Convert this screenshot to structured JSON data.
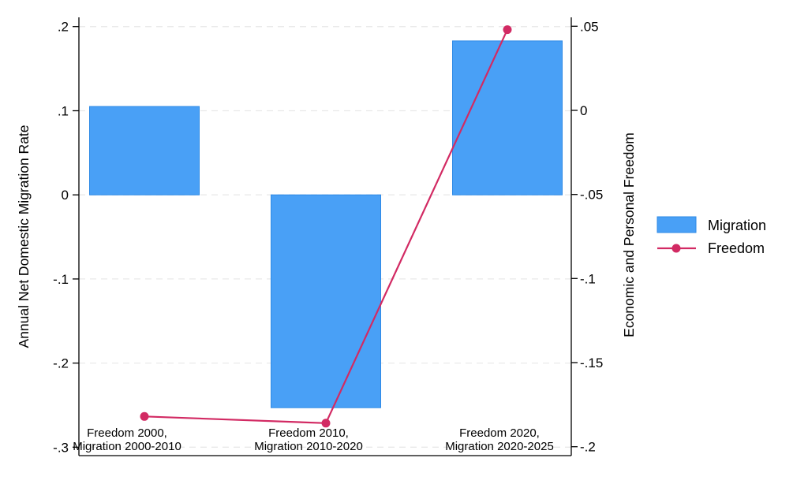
{
  "chart_data": {
    "type": "bar",
    "combo": "bar+line-dual-axis",
    "categories": [
      {
        "line1": "Freedom 2000,",
        "line2": "Migration 2000-2010"
      },
      {
        "line1": "Freedom 2010,",
        "line2": "Migration 2010-2020"
      },
      {
        "line1": "Freedom 2020,",
        "line2": "Migration 2020-2025"
      }
    ],
    "series": [
      {
        "name": "Migration",
        "type": "bar",
        "axis": "left",
        "values": [
          0.105,
          -0.253,
          0.183
        ],
        "color": "#49A0F6",
        "edge_color": "#2E8AE6"
      },
      {
        "name": "Freedom",
        "type": "line",
        "axis": "right",
        "values": [
          -0.182,
          -0.186,
          0.048
        ],
        "color": "#D22A63"
      }
    ],
    "left_axis": {
      "title": "Annual Net Domestic Migration Rate",
      "tick_labels": [
        ".2",
        ".1",
        "0",
        "-.1",
        "-.2",
        "-.3"
      ],
      "tick_values": [
        0.2,
        0.1,
        0,
        -0.1,
        -0.2,
        -0.3
      ],
      "min": -0.31,
      "max": 0.211
    },
    "right_axis": {
      "title": "Economic and Personal Freedom",
      "tick_labels": [
        ".05",
        "0",
        "-.05",
        "-.1",
        "-.15",
        "-.2"
      ],
      "tick_values": [
        0.05,
        0,
        -0.05,
        -0.1,
        -0.15,
        -0.2
      ],
      "min": -0.2053,
      "max": 0.0553
    },
    "legend": {
      "position": "right",
      "items": [
        {
          "label": "Migration",
          "marker": "bar-swatch"
        },
        {
          "label": "Freedom",
          "marker": "line-with-dot"
        }
      ]
    },
    "grid": {
      "show": true,
      "style": "dashed",
      "color": "#E9E9E9"
    },
    "axis_color": "#000000",
    "background": "#FFFFFF"
  }
}
